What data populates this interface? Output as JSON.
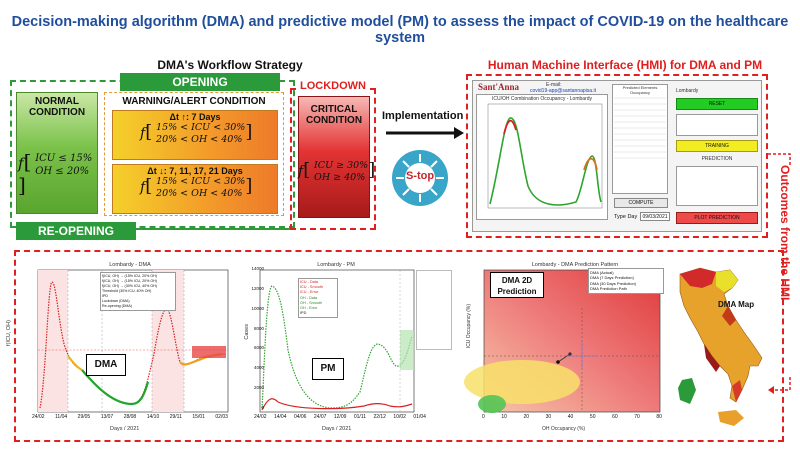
{
  "title": "Decision-making algorithm (DMA) and predictive model (PM) to assess the impact of COVID-19 on the healthcare system",
  "workflow": {
    "title": "DMA's Workflow Strategy",
    "opening_label": "OPENING",
    "reopening_label": "RE-OPENING",
    "lockdown_label": "LOCKDOWN",
    "normal": {
      "title": "NORMAL CONDITION",
      "line1": "ICU ≤ 15%",
      "line2": "OH ≤ 20%"
    },
    "warning": {
      "title": "WARNING/ALERT CONDITION",
      "box1_delta": "Δt",
      "box1_days": "↑: 7 Days",
      "box1_line1": "15% < ICU < 30%",
      "box1_line2": "20% < OH < 40%",
      "box2_delta": "Δt",
      "box2_days": "↓: 7, 11, 17, 21 Days",
      "box2_line1": "15% < ICU < 30%",
      "box2_line2": "20% < OH < 40%"
    },
    "critical": {
      "title": "CRITICAL CONDITION",
      "line1": "ICU ≥ 30%",
      "line2": "OH ≥ 40%"
    },
    "f_symbol": "f"
  },
  "implementation": {
    "label": "Implementation",
    "logo_text": "S-top"
  },
  "hmi": {
    "title": "Human Machine Interface (HMI) for DMA and PM",
    "brand": "Sant'Anna",
    "email_label": "E-mail:",
    "email": "covid19-app@santannapisa.it",
    "chart_title": "ICU/OH Combination Occupancy - Lombardy",
    "table_header": "Predicted Elements Occupancy",
    "region_label": "Lombardy",
    "reset": "RESET",
    "training": "TRAINING",
    "prediction_title": "PREDICTION",
    "compute": "COMPUTE",
    "type_day_label": "Type Day",
    "type_day_value": "09/03/2021",
    "plot_prediction": "PLOT PREDICTION"
  },
  "outcomes_label": "Outcomes from the HMI",
  "dma_chart": {
    "title": "Lombardy - DMA",
    "panel_label": "DMA",
    "ylabel": "f(ICU, OH)",
    "xlabel": "Days / 2021",
    "ticks_x": [
      "24/02",
      "11/04",
      "29/05",
      "13/07",
      "28/08",
      "14/10",
      "29/11",
      "15/01",
      "02/03"
    ],
    "ticks_y": [
      "0",
      "0.5",
      "1",
      "1.5",
      "2",
      "2.5",
      "3"
    ],
    "legend": [
      "f(ICU, OH) → (15% ICU, 20% OH)",
      "f(ICU, OH) → (15% ICU, 20% OH)",
      "f(ICU, OH) → (30% ICU, 40% OH)",
      "Threshold (30% ICU, 40% OH)",
      "IPD",
      "Lockdown (DMA)",
      "Re-opening (DMA)"
    ]
  },
  "pm_chart": {
    "title": "Lombardy - PM",
    "panel_label": "PM",
    "ylabel": "Cases",
    "xlabel": "Days / 2021",
    "ticks_x": [
      "24/02",
      "14/04",
      "04/06",
      "24/07",
      "12/09",
      "01/11",
      "22/12",
      "10/02",
      "01/04"
    ],
    "ticks_y": [
      "0",
      "2000",
      "4000",
      "6000",
      "8000",
      "10000",
      "12000",
      "14000"
    ],
    "legend": [
      "ICU - Data",
      "ICU - Smooth",
      "ICU - Error",
      "OH - Data",
      "OH - Smooth",
      "OH - Error",
      "IPD"
    ]
  },
  "dma2d_chart": {
    "title": "Lombardy - DMA Prediction Pattern",
    "panel_label": "DMA 2D Prediction",
    "ylabel": "ICU Occupancy (%)",
    "xlabel": "OH Occupancy (%)",
    "ticks_x": [
      "0",
      "10",
      "20",
      "30",
      "40",
      "50",
      "60",
      "70",
      "80"
    ],
    "ticks_y": [
      "0",
      "10",
      "20",
      "30",
      "40",
      "50",
      "60",
      "70",
      "80"
    ],
    "legend": [
      "DMA (Actual)",
      "DMA (7 Days Prediction)",
      "DMA (30 Days Prediction)",
      "DMA Prediction Path"
    ]
  },
  "map_label": "DMA Map",
  "chart_data": [
    {
      "type": "line",
      "title": "Lombardy - DMA",
      "xlabel": "Days / 2021",
      "ylabel": "f(ICU, OH)",
      "ylim": [
        0,
        3
      ],
      "x": [
        "24/02",
        "11/04",
        "29/05",
        "13/07",
        "28/08",
        "14/10",
        "29/11",
        "15/01",
        "02/03"
      ],
      "series": [
        {
          "name": "f(ICU, OH)",
          "values": [
            0.1,
            2.7,
            1.0,
            0.4,
            0.2,
            0.6,
            1.9,
            0.9,
            0.95
          ]
        }
      ]
    },
    {
      "type": "line",
      "title": "Lombardy - PM",
      "xlabel": "Days / 2021",
      "ylabel": "Cases",
      "ylim": [
        0,
        14000
      ],
      "x": [
        "24/02",
        "14/04",
        "04/06",
        "24/07",
        "12/09",
        "01/11",
        "22/12",
        "10/02",
        "01/04"
      ],
      "series": [
        {
          "name": "OH - Data",
          "values": [
            0,
            12000,
            4000,
            500,
            300,
            1500,
            7500,
            4000,
            6500
          ]
        },
        {
          "name": "ICU - Data",
          "values": [
            0,
            1300,
            300,
            50,
            40,
            200,
            900,
            450,
            800
          ]
        }
      ]
    },
    {
      "type": "scatter",
      "title": "Lombardy - DMA Prediction Pattern",
      "xlabel": "OH Occupancy (%)",
      "ylabel": "ICU Occupancy (%)",
      "xlim": [
        0,
        80
      ],
      "ylim": [
        0,
        80
      ],
      "series": [
        {
          "name": "DMA Prediction Path",
          "x": [
            34,
            36,
            38,
            41
          ],
          "y": [
            28,
            29,
            31,
            35
          ]
        }
      ]
    }
  ]
}
